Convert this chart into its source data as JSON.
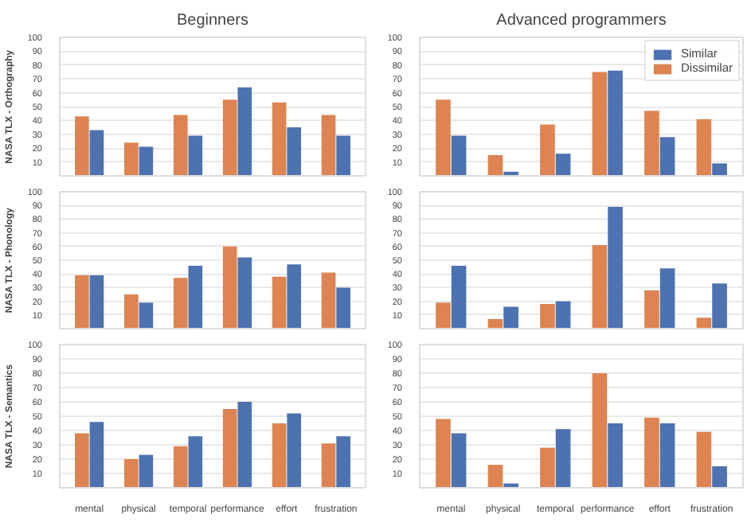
{
  "chart_data": [
    {
      "type": "bar",
      "title": "Beginners",
      "ylabel": "NASA TLX - Orthography",
      "categories": [
        null,
        null,
        null,
        null,
        null,
        null
      ],
      "series": [
        {
          "color": "#dd8452",
          "values": [
            43,
            24,
            44,
            55,
            53,
            44
          ]
        },
        {
          "color": "#4c72b0",
          "values": [
            33,
            21,
            29,
            64,
            35,
            29
          ]
        }
      ],
      "ylim": [
        0,
        100
      ],
      "yticks": [
        10,
        20,
        30,
        40,
        50,
        60,
        70,
        80,
        90,
        100
      ],
      "grid": "y",
      "tick_labels": "y",
      "legend": false
    },
    {
      "type": "bar",
      "title": "Advanced programmers",
      "categories": [
        null,
        null,
        null,
        null,
        null,
        null
      ],
      "series": [
        {
          "name": "Dissimilar",
          "color": "#dd8452",
          "values": [
            55,
            15,
            37,
            75,
            47,
            41
          ]
        },
        {
          "name": "Similar",
          "color": "#4c72b0",
          "values": [
            29,
            3,
            16,
            76,
            28,
            9
          ]
        }
      ],
      "ylim": [
        0,
        100
      ],
      "yticks": [
        10,
        20,
        30,
        40,
        50,
        60,
        70,
        80,
        90,
        100
      ],
      "grid": "y",
      "tick_labels": "y",
      "legend": "top right"
    },
    {
      "type": "bar",
      "ylabel": "NASA TLX - Phonology",
      "categories": [
        null,
        null,
        null,
        null,
        null,
        null
      ],
      "series": [
        {
          "color": "#dd8452",
          "values": [
            39,
            25,
            37,
            60,
            38,
            41
          ]
        },
        {
          "color": "#4c72b0",
          "values": [
            39,
            19,
            46,
            52,
            47,
            30
          ]
        }
      ],
      "ylim": [
        0,
        100
      ],
      "yticks": [
        10,
        20,
        30,
        40,
        50,
        60,
        70,
        80,
        90,
        100
      ],
      "grid": "y",
      "tick_labels": "y",
      "legend": false
    },
    {
      "type": "bar",
      "categories": [
        null,
        null,
        null,
        null,
        null,
        null
      ],
      "series": [
        {
          "color": "#dd8452",
          "values": [
            19,
            7,
            18,
            61,
            28,
            8
          ]
        },
        {
          "color": "#4c72b0",
          "values": [
            46,
            16,
            20,
            89,
            44,
            33
          ]
        }
      ],
      "ylim": [
        0,
        100
      ],
      "yticks": [
        10,
        20,
        30,
        40,
        50,
        60,
        70,
        80,
        90,
        100
      ],
      "grid": "y",
      "tick_labels": "y",
      "legend": false
    },
    {
      "type": "bar",
      "ylabel": "NASA TLX - Semantics",
      "categories": [
        "mental",
        "physical",
        "temporal",
        "performance",
        "effort",
        "frustration"
      ],
      "series": [
        {
          "color": "#dd8452",
          "values": [
            38,
            20,
            29,
            55,
            45,
            31
          ]
        },
        {
          "color": "#4c72b0",
          "values": [
            46,
            23,
            36,
            60,
            52,
            36
          ]
        }
      ],
      "ylim": [
        0,
        100
      ],
      "yticks": [
        10,
        20,
        30,
        40,
        50,
        60,
        70,
        80,
        90,
        100
      ],
      "grid": "y",
      "legend": false
    },
    {
      "type": "bar",
      "categories": [
        "mental",
        "physical",
        "temporal",
        "performance",
        "effort",
        "frustration"
      ],
      "series": [
        {
          "color": "#dd8452",
          "values": [
            48,
            16,
            28,
            80,
            49,
            39
          ]
        },
        {
          "color": "#4c72b0",
          "values": [
            38,
            3,
            41,
            45,
            45,
            15
          ]
        }
      ],
      "ylim": [
        0,
        100
      ],
      "yticks": [
        10,
        20,
        30,
        40,
        50,
        60,
        70,
        80,
        90,
        100
      ],
      "grid": "y",
      "legend": false
    }
  ]
}
